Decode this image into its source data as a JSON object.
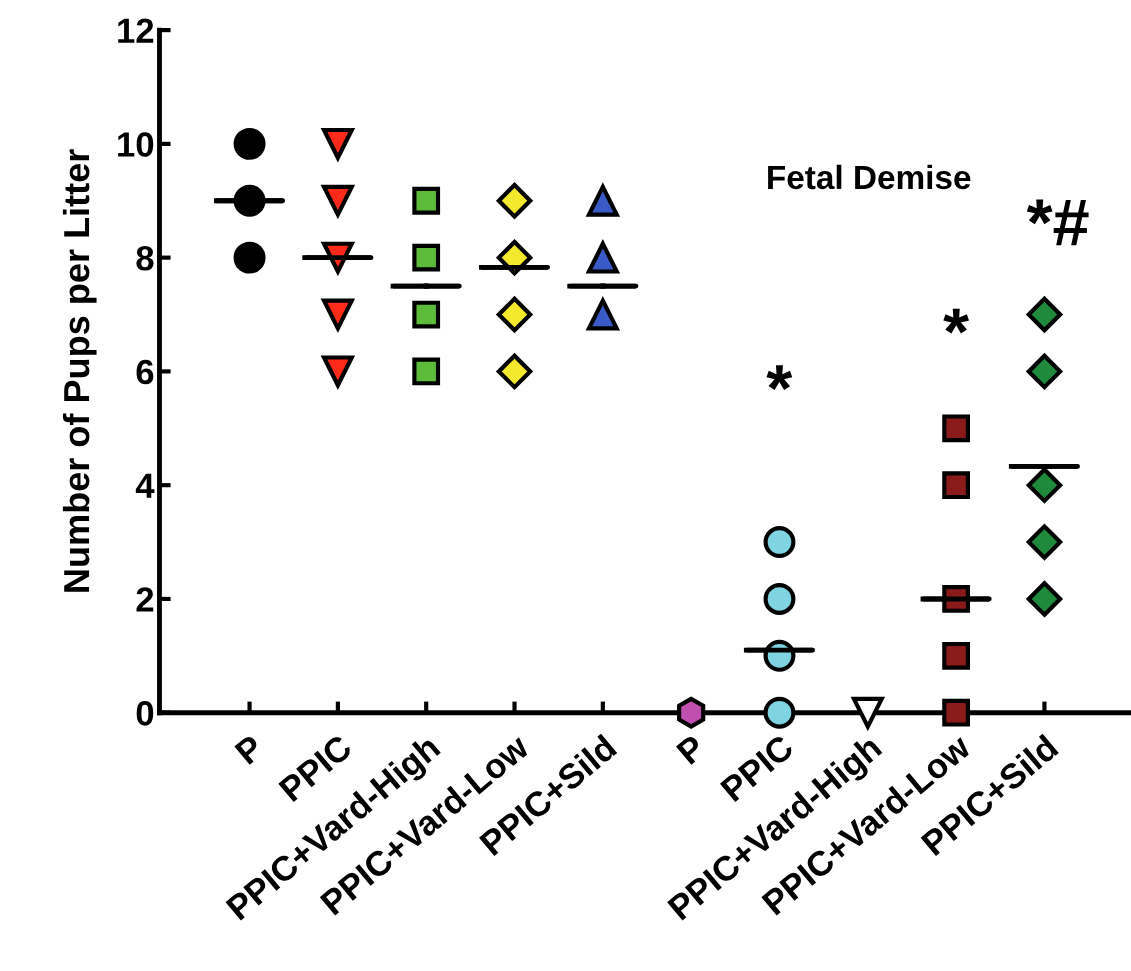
{
  "chart_data": {
    "type": "scatter",
    "ylabel": "Number of Pups per Litter",
    "categories": [
      "P",
      "PPIC",
      "PPIC+Vard-High",
      "PPIC+Vard-Low",
      "PPIC+Sild",
      "P",
      "PPIC",
      "PPIC+Vard-High",
      "PPIC+Vard-Low",
      "PPIC+Sild"
    ],
    "ylim": [
      0,
      12
    ],
    "yticks": [
      0,
      2,
      4,
      6,
      8,
      10,
      12
    ],
    "grid": false,
    "series": [
      {
        "color": "#000000",
        "marker": "circle",
        "values": [
          10,
          null,
          null,
          null,
          null,
          null,
          null,
          null,
          null,
          null
        ]
      },
      {
        "color": "#000000",
        "marker": "circle",
        "values": [
          9,
          null,
          null,
          null,
          null,
          null,
          null,
          null,
          null,
          null
        ]
      },
      {
        "color": "#000000",
        "marker": "circle",
        "values": [
          8,
          null,
          null,
          null,
          null,
          null,
          null,
          null,
          null,
          null
        ]
      },
      {
        "color": "#ff2a1a",
        "marker": "triangle_down",
        "values": [
          null,
          10,
          null,
          null,
          null,
          null,
          null,
          null,
          null,
          null
        ]
      },
      {
        "color": "#ff2a1a",
        "marker": "triangle_down",
        "values": [
          null,
          9,
          null,
          null,
          null,
          null,
          null,
          null,
          null,
          null
        ]
      },
      {
        "color": "#ff2a1a",
        "marker": "triangle_down",
        "values": [
          null,
          8,
          null,
          null,
          null,
          null,
          null,
          null,
          null,
          null
        ]
      },
      {
        "color": "#ff2a1a",
        "marker": "triangle_down",
        "values": [
          null,
          7,
          null,
          null,
          null,
          null,
          null,
          null,
          null,
          null
        ]
      },
      {
        "color": "#ff2a1a",
        "marker": "triangle_down",
        "values": [
          null,
          6,
          null,
          null,
          null,
          null,
          null,
          null,
          null,
          null
        ]
      },
      {
        "color": "#5dbb3a",
        "marker": "square",
        "values": [
          null,
          null,
          9,
          null,
          null,
          null,
          null,
          null,
          null,
          null
        ]
      },
      {
        "color": "#5dbb3a",
        "marker": "square",
        "values": [
          null,
          null,
          8,
          null,
          null,
          null,
          null,
          null,
          null,
          null
        ]
      },
      {
        "color": "#5dbb3a",
        "marker": "square",
        "values": [
          null,
          null,
          7,
          null,
          null,
          null,
          null,
          null,
          null,
          null
        ]
      },
      {
        "color": "#5dbb3a",
        "marker": "square",
        "values": [
          null,
          null,
          6,
          null,
          null,
          null,
          null,
          null,
          null,
          null
        ]
      },
      {
        "color": "#f5e92e",
        "marker": "diamond",
        "values": [
          null,
          null,
          null,
          9,
          null,
          null,
          null,
          null,
          null,
          null
        ]
      },
      {
        "color": "#f5e92e",
        "marker": "diamond",
        "values": [
          null,
          null,
          null,
          8,
          null,
          null,
          null,
          null,
          null,
          null
        ]
      },
      {
        "color": "#f5e92e",
        "marker": "diamond",
        "values": [
          null,
          null,
          null,
          7,
          null,
          null,
          null,
          null,
          null,
          null
        ]
      },
      {
        "color": "#f5e92e",
        "marker": "diamond",
        "values": [
          null,
          null,
          null,
          6,
          null,
          null,
          null,
          null,
          null,
          null
        ]
      },
      {
        "color": "#3a5bc7",
        "marker": "triangle",
        "values": [
          null,
          null,
          null,
          null,
          9,
          null,
          null,
          null,
          null,
          null
        ]
      },
      {
        "color": "#3a5bc7",
        "marker": "triangle",
        "values": [
          null,
          null,
          null,
          null,
          8,
          null,
          null,
          null,
          null,
          null
        ]
      },
      {
        "color": "#3a5bc7",
        "marker": "triangle",
        "values": [
          null,
          null,
          null,
          null,
          7,
          null,
          null,
          null,
          null,
          null
        ]
      },
      {
        "color": "#c050b0",
        "values": [
          null,
          null,
          null,
          null,
          null,
          0,
          null,
          null,
          null,
          null
        ]
      },
      {
        "color": "#80d3e0",
        "marker": "circle",
        "values": [
          null,
          null,
          null,
          null,
          null,
          null,
          3,
          null,
          null,
          null
        ]
      },
      {
        "color": "#80d3e0",
        "marker": "circle",
        "values": [
          null,
          null,
          null,
          null,
          null,
          null,
          2,
          null,
          null,
          null
        ]
      },
      {
        "color": "#80d3e0",
        "marker": "circle",
        "values": [
          null,
          null,
          null,
          null,
          null,
          null,
          1,
          null,
          null,
          null
        ]
      },
      {
        "color": "#80d3e0",
        "marker": "circle",
        "values": [
          null,
          null,
          null,
          null,
          null,
          null,
          0,
          null,
          null,
          null
        ]
      },
      {
        "color": "#ffffff",
        "marker": "triangle_down",
        "values": [
          null,
          null,
          null,
          null,
          null,
          null,
          null,
          0,
          null,
          null
        ]
      },
      {
        "color": "#8b1a1a",
        "marker": "square",
        "values": [
          null,
          null,
          null,
          null,
          null,
          null,
          null,
          null,
          5,
          null
        ]
      },
      {
        "color": "#8b1a1a",
        "marker": "square",
        "values": [
          null,
          null,
          null,
          null,
          null,
          null,
          null,
          null,
          4,
          null
        ]
      },
      {
        "color": "#8b1a1a",
        "marker": "square",
        "values": [
          null,
          null,
          null,
          null,
          null,
          null,
          null,
          null,
          2,
          null
        ]
      },
      {
        "color": "#8b1a1a",
        "marker": "square",
        "values": [
          null,
          null,
          null,
          null,
          null,
          null,
          null,
          null,
          1,
          null
        ]
      },
      {
        "color": "#8b1a1a",
        "marker": "square",
        "values": [
          null,
          null,
          null,
          null,
          null,
          null,
          null,
          null,
          0,
          null
        ]
      },
      {
        "color": "#1f8a3c",
        "marker": "diamond",
        "values": [
          null,
          null,
          null,
          null,
          null,
          null,
          null,
          null,
          null,
          7
        ]
      },
      {
        "color": "#1f8a3c",
        "marker": "diamond",
        "values": [
          null,
          null,
          null,
          null,
          null,
          null,
          null,
          null,
          null,
          6
        ]
      },
      {
        "color": "#1f8a3c",
        "marker": "diamond",
        "values": [
          null,
          null,
          null,
          null,
          null,
          null,
          null,
          null,
          null,
          4
        ]
      },
      {
        "color": "#1f8a3c",
        "marker": "diamond",
        "values": [
          null,
          null,
          null,
          null,
          null,
          null,
          null,
          null,
          null,
          3
        ]
      },
      {
        "color": "#1f8a3c",
        "marker": "diamond",
        "values": [
          null,
          null,
          null,
          null,
          null,
          null,
          null,
          null,
          null,
          2
        ]
      },
      {
        "type": "box",
        "color": "#000000",
        "boxes": [
          {
            "low": 9,
            "q1": 9,
            "median": 9,
            "q3": 9,
            "high": 9
          },
          {
            "low": 8,
            "q1": 8,
            "median": 8,
            "q3": 8,
            "high": 8
          },
          {
            "low": 7.5,
            "q1": 7.5,
            "median": 7.5,
            "q3": 7.5,
            "high": 7.5
          },
          {
            "low": 7.83,
            "q1": 7.83,
            "median": 7.83,
            "q3": 7.83,
            "high": 7.83
          },
          {
            "low": 7.5,
            "q1": 7.5,
            "median": 7.5,
            "q3": 7.5,
            "high": 7.5
          },
          null,
          {
            "low": 1.1,
            "q1": 1.1,
            "median": 1.1,
            "q3": 1.1,
            "high": 1.1
          },
          null,
          {
            "low": 2,
            "q1": 2,
            "median": 2,
            "q3": 2,
            "high": 2
          },
          {
            "low": 4.33,
            "q1": 4.33,
            "median": 4.33,
            "q3": 4.33,
            "high": 4.33
          }
        ]
      }
    ],
    "annotations": [
      "Fetal Demise",
      "*",
      "*",
      "*#"
    ]
  }
}
